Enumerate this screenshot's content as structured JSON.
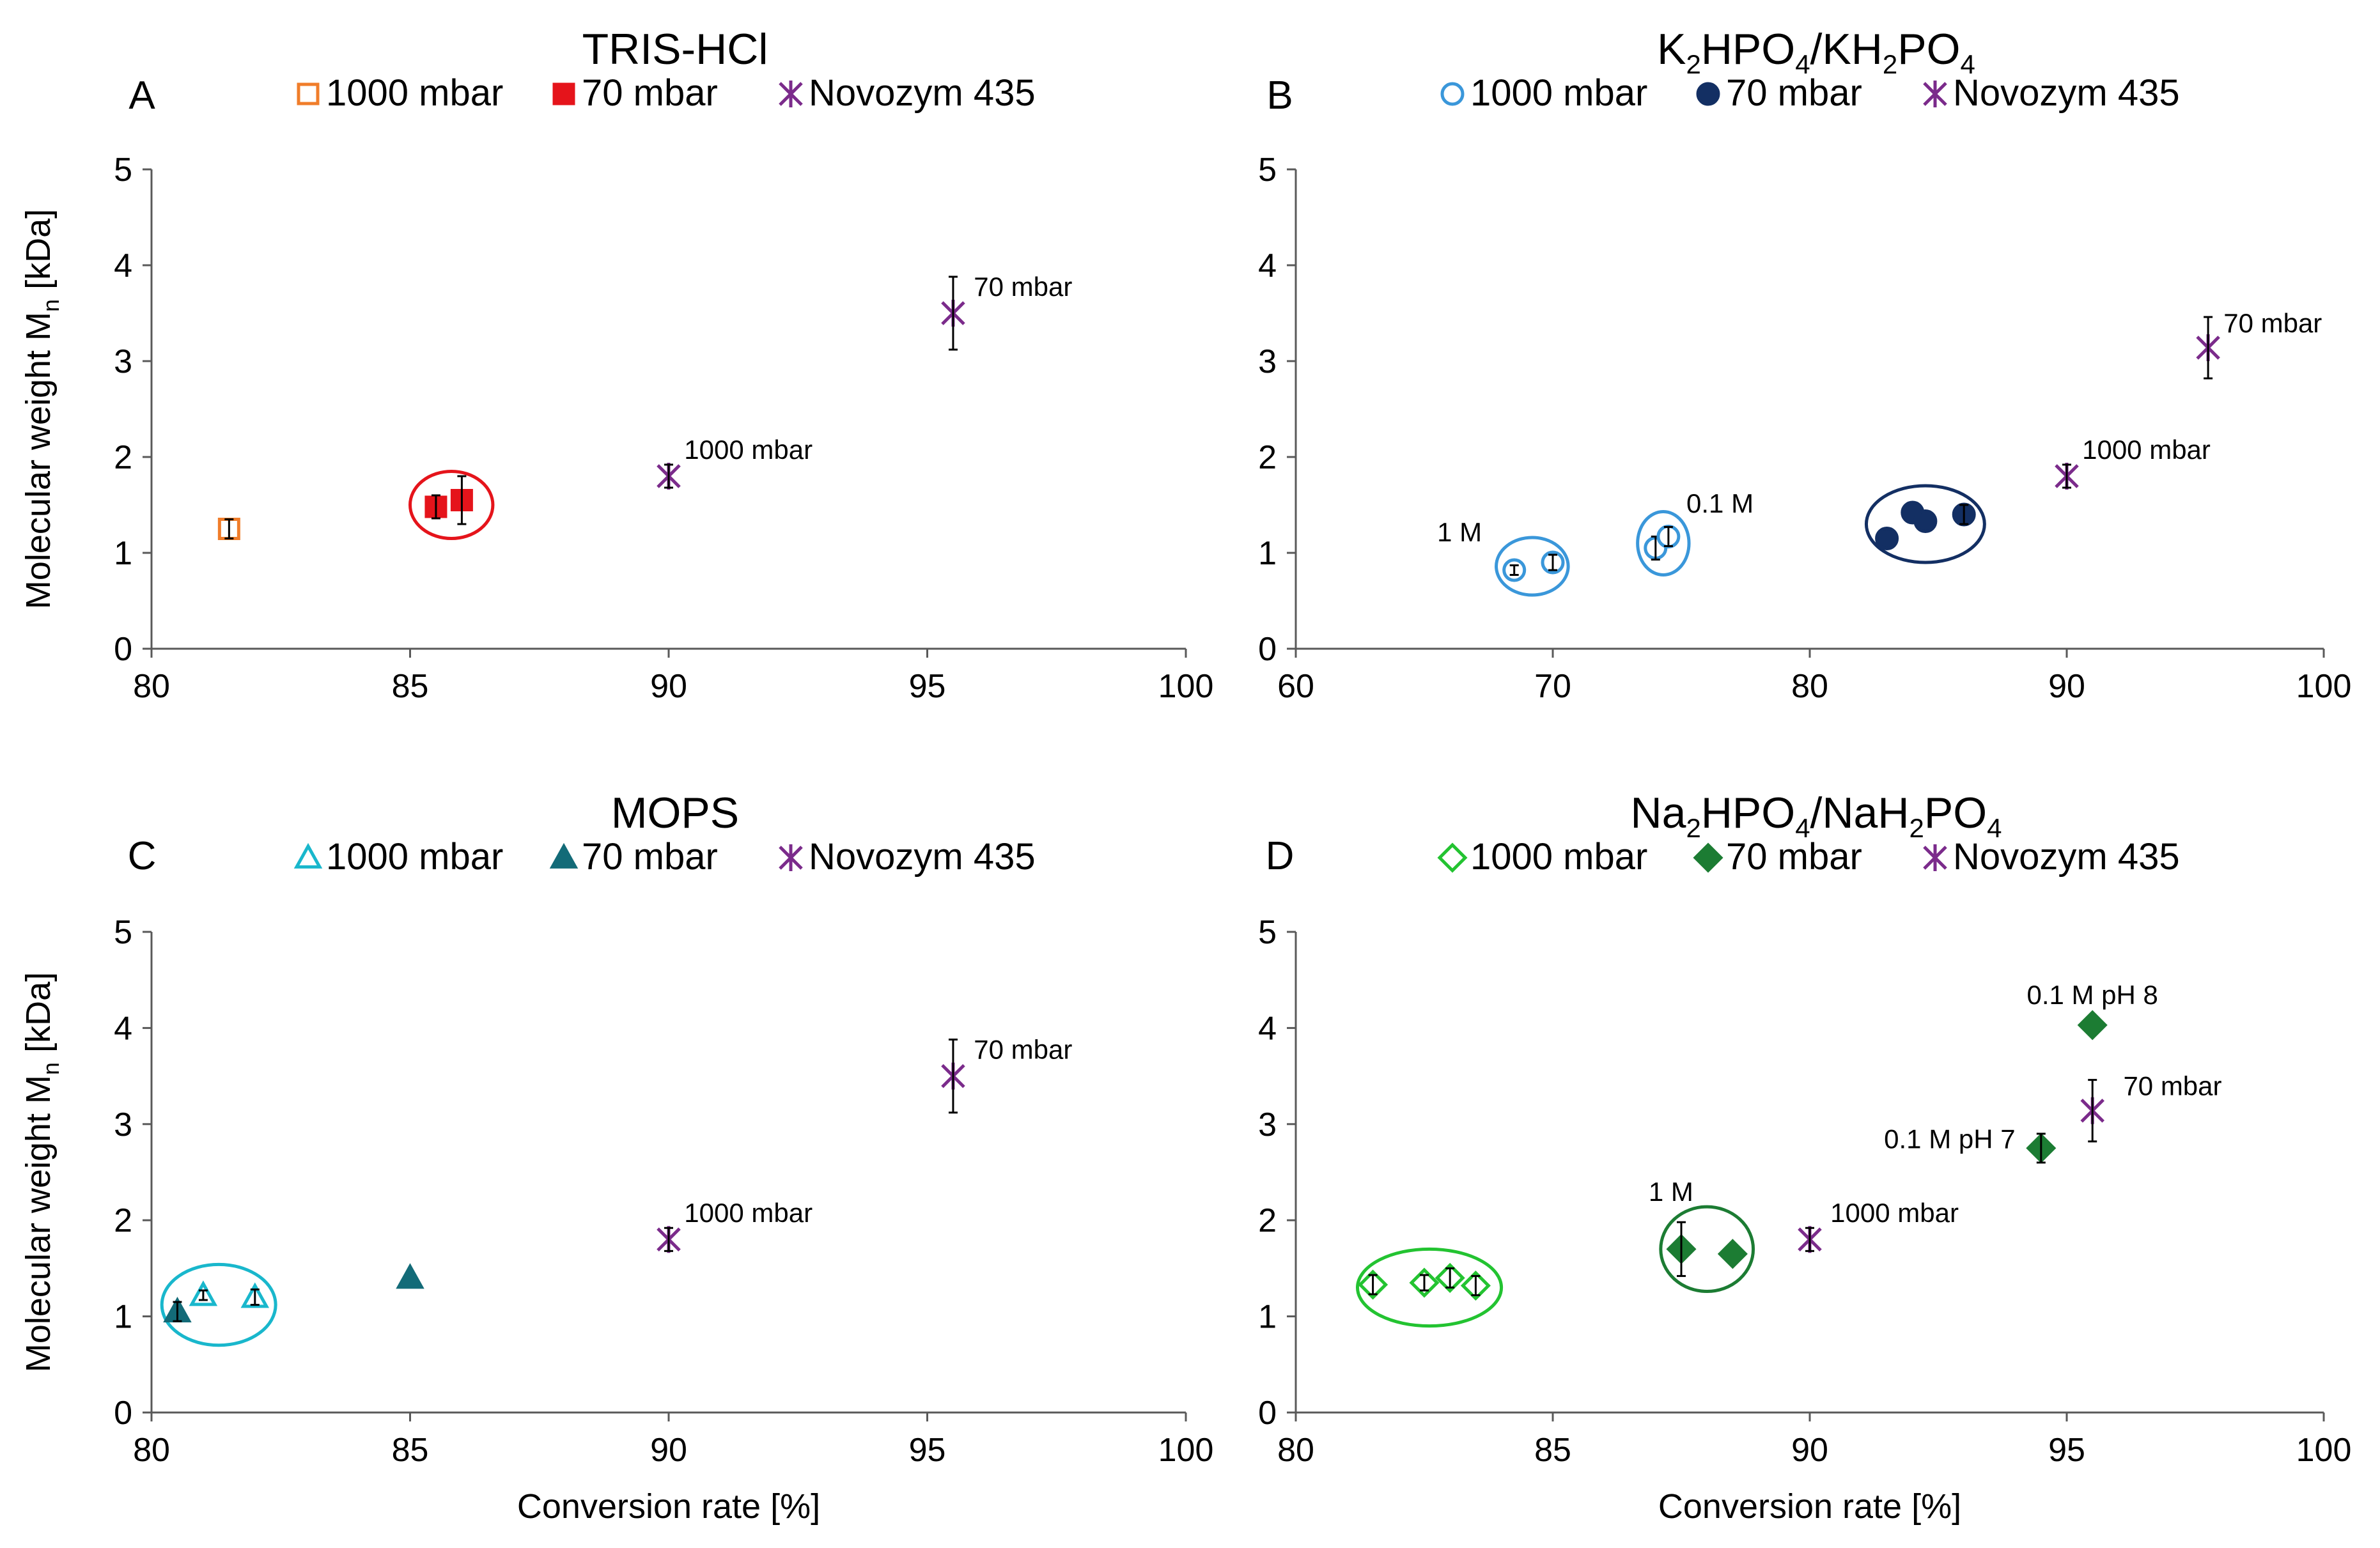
{
  "y_axis_label": "Molecular weight M",
  "y_axis_label_sub": "n",
  "y_axis_label_unit": " [kDa]",
  "x_axis_label": "Conversion rate [%]",
  "colors": {
    "tris_1000": "#f07d2a",
    "tris_70": "#e5141b",
    "k_1000": "#3a97da",
    "k_70": "#132f63",
    "mops_1000": "#19b7cc",
    "mops_70": "#136b78",
    "na_1000": "#23c331",
    "na_70": "#1c7c33",
    "novozym": "#7b2b8b",
    "axis": "#595959",
    "text": "#000000"
  },
  "chart_data": [
    {
      "panel": "A",
      "type": "scatter",
      "title": "TRIS-HCl",
      "xlabel": "",
      "ylabel": "Molecular weight Mn [kDa]",
      "xlim": [
        80,
        100
      ],
      "ylim": [
        0,
        5
      ],
      "xticks": [
        80,
        85,
        90,
        95,
        100
      ],
      "yticks": [
        0,
        1,
        2,
        3,
        4,
        5
      ],
      "legend": [
        "1000 mbar",
        "70 mbar",
        "Novozym 435"
      ],
      "series": [
        {
          "name": "1000 mbar",
          "marker": "square-open",
          "color_key": "tris_1000",
          "points": [
            {
              "x": 81.5,
              "y": 1.25,
              "err": 0.1
            }
          ]
        },
        {
          "name": "70 mbar",
          "marker": "square",
          "color_key": "tris_70",
          "points": [
            {
              "x": 85.5,
              "y": 1.48,
              "err": 0.12
            },
            {
              "x": 86.0,
              "y": 1.55,
              "err": 0.25
            }
          ]
        },
        {
          "name": "Novozym 435",
          "marker": "star",
          "color_key": "novozym",
          "points": [
            {
              "x": 90.0,
              "y": 1.8,
              "err": 0.12
            },
            {
              "x": 95.5,
              "y": 3.5,
              "err": 0.38
            }
          ]
        }
      ],
      "annotations": [
        {
          "text": "1000 mbar",
          "x": 90.3,
          "y": 1.98,
          "anchor": "start"
        },
        {
          "text": "70 mbar",
          "x": 95.9,
          "y": 3.68,
          "anchor": "start"
        }
      ],
      "groups": [
        {
          "cx": 85.8,
          "cy": 1.5,
          "rx": 0.8,
          "ry": 0.35,
          "color_key": "tris_70"
        }
      ]
    },
    {
      "panel": "B",
      "type": "scatter",
      "title": "K2HPO4/KH2PO4",
      "xlabel": "",
      "ylabel": "",
      "xlim": [
        60,
        100
      ],
      "ylim": [
        0,
        5
      ],
      "xticks": [
        60,
        70,
        80,
        90,
        100
      ],
      "yticks": [
        0,
        1,
        2,
        3,
        4,
        5
      ],
      "legend": [
        "1000 mbar",
        "70 mbar",
        "Novozym 435"
      ],
      "series": [
        {
          "name": "1000 mbar",
          "marker": "circle-open",
          "color_key": "k_1000",
          "points": [
            {
              "x": 68.5,
              "y": 0.82,
              "err": 0.05
            },
            {
              "x": 70.0,
              "y": 0.9,
              "err": 0.08
            },
            {
              "x": 74.0,
              "y": 1.05,
              "err": 0.12
            },
            {
              "x": 74.5,
              "y": 1.17,
              "err": 0.1
            }
          ]
        },
        {
          "name": "70 mbar",
          "marker": "circle",
          "color_key": "k_70",
          "points": [
            {
              "x": 83.0,
              "y": 1.15,
              "err": 0
            },
            {
              "x": 84.0,
              "y": 1.42,
              "err": 0
            },
            {
              "x": 84.5,
              "y": 1.33,
              "err": 0
            },
            {
              "x": 86.0,
              "y": 1.4,
              "err": 0.1
            }
          ]
        },
        {
          "name": "Novozym 435",
          "marker": "star",
          "color_key": "novozym",
          "points": [
            {
              "x": 90.0,
              "y": 1.8,
              "err": 0.12
            },
            {
              "x": 95.5,
              "y": 3.14,
              "err": 0.32
            }
          ]
        }
      ],
      "annotations": [
        {
          "text": "1 M",
          "x": 65.5,
          "y": 1.12,
          "anchor": "start"
        },
        {
          "text": "0.1 M",
          "x": 75.2,
          "y": 1.42,
          "anchor": "start"
        },
        {
          "text": "1000 mbar",
          "x": 90.6,
          "y": 1.98,
          "anchor": "start"
        },
        {
          "text": "70 mbar",
          "x": 96.1,
          "y": 3.3,
          "anchor": "start"
        }
      ],
      "groups": [
        {
          "cx": 69.2,
          "cy": 0.86,
          "rx": 1.4,
          "ry": 0.3,
          "color_key": "k_1000"
        },
        {
          "cx": 74.3,
          "cy": 1.1,
          "rx": 1.0,
          "ry": 0.33,
          "color_key": "k_1000"
        },
        {
          "cx": 84.5,
          "cy": 1.3,
          "rx": 2.3,
          "ry": 0.4,
          "color_key": "k_70"
        }
      ]
    },
    {
      "panel": "C",
      "type": "scatter",
      "title": "MOPS",
      "xlabel": "Conversion rate [%]",
      "ylabel": "Molecular weight Mn [kDa]",
      "xlim": [
        80,
        100
      ],
      "ylim": [
        0,
        5
      ],
      "xticks": [
        80,
        85,
        90,
        95,
        100
      ],
      "yticks": [
        0,
        1,
        2,
        3,
        4,
        5
      ],
      "legend": [
        "1000 mbar",
        "70 mbar",
        "Novozym 435"
      ],
      "series": [
        {
          "name": "1000 mbar",
          "marker": "triangle-open",
          "color_key": "mops_1000",
          "points": [
            {
              "x": 81.0,
              "y": 1.22,
              "err": 0.05
            },
            {
              "x": 82.0,
              "y": 1.2,
              "err": 0.08
            }
          ]
        },
        {
          "name": "70 mbar",
          "marker": "triangle",
          "color_key": "mops_70",
          "points": [
            {
              "x": 80.5,
              "y": 1.05,
              "err": 0.1
            },
            {
              "x": 85.0,
              "y": 1.4,
              "err": 0
            }
          ]
        },
        {
          "name": "Novozym 435",
          "marker": "star",
          "color_key": "novozym",
          "points": [
            {
              "x": 90.0,
              "y": 1.8,
              "err": 0.12
            },
            {
              "x": 95.5,
              "y": 3.5,
              "err": 0.38
            }
          ]
        }
      ],
      "annotations": [
        {
          "text": "1000 mbar",
          "x": 90.3,
          "y": 1.98,
          "anchor": "start"
        },
        {
          "text": "70 mbar",
          "x": 95.9,
          "y": 3.68,
          "anchor": "start"
        }
      ],
      "groups": [
        {
          "cx": 81.3,
          "cy": 1.12,
          "rx": 1.1,
          "ry": 0.42,
          "color_key": "mops_1000"
        }
      ]
    },
    {
      "panel": "D",
      "type": "scatter",
      "title": "Na2HPO4/NaH2PO4",
      "xlabel": "Conversion rate [%]",
      "ylabel": "",
      "xlim": [
        80,
        100
      ],
      "ylim": [
        0,
        5
      ],
      "xticks": [
        80,
        85,
        90,
        95,
        100
      ],
      "yticks": [
        0,
        1,
        2,
        3,
        4,
        5
      ],
      "legend": [
        "1000 mbar",
        "70 mbar",
        "Novozym 435"
      ],
      "series": [
        {
          "name": "1000 mbar",
          "marker": "diamond-open",
          "color_key": "na_1000",
          "points": [
            {
              "x": 81.5,
              "y": 1.33,
              "err": 0.1
            },
            {
              "x": 82.5,
              "y": 1.35,
              "err": 0.08
            },
            {
              "x": 83.0,
              "y": 1.4,
              "err": 0.1
            },
            {
              "x": 83.5,
              "y": 1.32,
              "err": 0.1
            }
          ]
        },
        {
          "name": "70 mbar",
          "marker": "diamond",
          "color_key": "na_70",
          "points": [
            {
              "x": 87.5,
              "y": 1.7,
              "err": 0.28
            },
            {
              "x": 88.5,
              "y": 1.65,
              "err": 0
            },
            {
              "x": 94.5,
              "y": 2.75,
              "err": 0.15
            },
            {
              "x": 95.5,
              "y": 4.03,
              "err": 0
            }
          ]
        },
        {
          "name": "Novozym 435",
          "marker": "star",
          "color_key": "novozym",
          "points": [
            {
              "x": 90.0,
              "y": 1.8,
              "err": 0.12
            },
            {
              "x": 95.5,
              "y": 3.14,
              "err": 0.32
            }
          ]
        }
      ],
      "annotations": [
        {
          "text": "0.1 M  pH 8",
          "x": 95.5,
          "y": 4.25,
          "anchor": "middle"
        },
        {
          "text": "0.1 M  pH 7",
          "x": 94.0,
          "y": 2.75,
          "anchor": "end"
        },
        {
          "text": "70 mbar",
          "x": 96.1,
          "y": 3.3,
          "anchor": "start"
        },
        {
          "text": "1 M",
          "x": 87.3,
          "y": 2.2,
          "anchor": "middle"
        },
        {
          "text": "1000 mbar",
          "x": 90.4,
          "y": 1.98,
          "anchor": "start"
        }
      ],
      "groups": [
        {
          "cx": 82.6,
          "cy": 1.3,
          "rx": 1.4,
          "ry": 0.4,
          "color_key": "na_1000"
        },
        {
          "cx": 88.0,
          "cy": 1.7,
          "rx": 0.9,
          "ry": 0.44,
          "color_key": "na_70"
        }
      ]
    }
  ]
}
